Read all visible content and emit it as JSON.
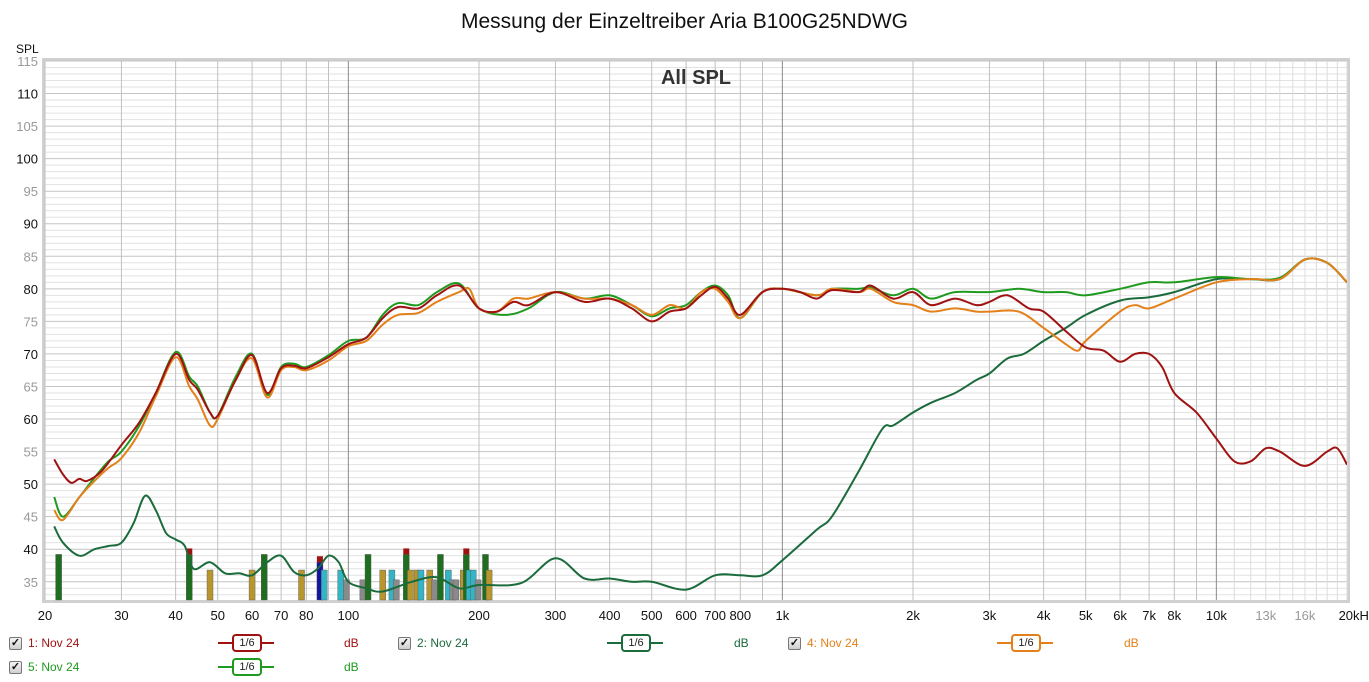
{
  "chart_data": {
    "type": "line",
    "title": "Messung der Einzeltreiber Aria B100G25NDWG",
    "overlay_label": "All SPL",
    "ylabel": "SPL",
    "xlabel": "Hz",
    "xscale": "log",
    "xlim": [
      20,
      20000
    ],
    "ylim": [
      32.2,
      115
    ],
    "grid": true,
    "y_ticks": [
      "115",
      "110",
      "105",
      "100",
      "95",
      "90",
      "85",
      "80",
      "75",
      "70",
      "65",
      "60",
      "55",
      "50",
      "45",
      "40",
      "35"
    ],
    "y_tick_values": [
      115,
      110,
      105,
      100,
      95,
      90,
      85,
      80,
      75,
      70,
      65,
      60,
      55,
      50,
      45,
      40,
      35
    ],
    "x_ticks": [
      {
        "v": 20,
        "t": "20"
      },
      {
        "v": 30,
        "t": "30"
      },
      {
        "v": 40,
        "t": "40"
      },
      {
        "v": 50,
        "t": "50"
      },
      {
        "v": 60,
        "t": "60"
      },
      {
        "v": 70,
        "t": "70"
      },
      {
        "v": 80,
        "t": "80"
      },
      {
        "v": 100,
        "t": "100"
      },
      {
        "v": 200,
        "t": "200"
      },
      {
        "v": 300,
        "t": "300"
      },
      {
        "v": 400,
        "t": "400"
      },
      {
        "v": 500,
        "t": "500"
      },
      {
        "v": 600,
        "t": "600"
      },
      {
        "v": 700,
        "t": "700"
      },
      {
        "v": 800,
        "t": "800"
      },
      {
        "v": 1000,
        "t": "1k"
      },
      {
        "v": 2000,
        "t": "2k"
      },
      {
        "v": 3000,
        "t": "3k"
      },
      {
        "v": 4000,
        "t": "4k"
      },
      {
        "v": 5000,
        "t": "5k"
      },
      {
        "v": 6000,
        "t": "6k"
      },
      {
        "v": 7000,
        "t": "7k"
      },
      {
        "v": 8000,
        "t": "8k"
      },
      {
        "v": 10000,
        "t": "10k"
      },
      {
        "v": 13000,
        "t": "13k"
      },
      {
        "v": 16000,
        "t": "16k"
      },
      {
        "v": 20000,
        "t": "20kHz"
      }
    ],
    "series": [
      {
        "name": "1: Nov 24",
        "color": "#a01212",
        "x": [
          21,
          22,
          23,
          24,
          25,
          27,
          30,
          33,
          36,
          40,
          43,
          45,
          48,
          50,
          55,
          60,
          65,
          70,
          75,
          80,
          90,
          100,
          110,
          120,
          130,
          145,
          160,
          180,
          200,
          220,
          240,
          260,
          300,
          350,
          400,
          450,
          500,
          550,
          600,
          650,
          700,
          750,
          800,
          900,
          1000,
          1100,
          1200,
          1300,
          1500,
          1600,
          1800,
          2000,
          2200,
          2500,
          2800,
          3000,
          3300,
          3700,
          4000,
          4500,
          5000,
          5500,
          6000,
          6500,
          7000,
          7500,
          8000,
          9000,
          10000,
          11000,
          12000,
          13000,
          14000,
          16000,
          18000,
          19000,
          20000
        ],
        "y": [
          53.8,
          51.5,
          50.2,
          50.8,
          50.5,
          52,
          56,
          59.5,
          64,
          70,
          66,
          64.5,
          61,
          60.5,
          66,
          69.8,
          64,
          67.8,
          68.2,
          67.8,
          69.5,
          71.5,
          72.5,
          75.5,
          77.2,
          77,
          79,
          80.5,
          77,
          76.5,
          78,
          77.5,
          79.5,
          78,
          78.5,
          77,
          75,
          76.5,
          77,
          79,
          80.3,
          78.5,
          76,
          79.5,
          80,
          79.5,
          78.5,
          79.8,
          79.5,
          80.5,
          78.5,
          79.5,
          77.5,
          78.5,
          77.5,
          78,
          79,
          77,
          76.5,
          73.5,
          71,
          70.5,
          68.8,
          70,
          70,
          68,
          64,
          61,
          57,
          53.5,
          53.5,
          55.5,
          55,
          52.8,
          55,
          55.5,
          53
        ]
      },
      {
        "name": "2: Nov 24",
        "color": "#1b6b3c",
        "x": [
          21,
          22,
          24,
          26,
          28,
          30,
          32,
          34,
          36,
          38,
          40,
          42,
          44,
          48,
          52,
          56,
          60,
          65,
          70,
          75,
          80,
          85,
          90,
          95,
          100,
          110,
          120,
          140,
          160,
          180,
          200,
          250,
          300,
          350,
          400,
          450,
          500,
          600,
          700,
          800,
          900,
          1000,
          1200,
          1300,
          1500,
          1700,
          1800,
          2000,
          2200,
          2500,
          2800,
          3000,
          3300,
          3600,
          4000,
          4500,
          5000,
          6000,
          7000,
          8000,
          10000,
          12000,
          14000,
          16000,
          18000,
          20000
        ],
        "y": [
          43.5,
          41,
          39,
          40,
          40.5,
          41,
          44,
          48.2,
          46,
          42.5,
          41.5,
          40.5,
          37,
          38,
          36.3,
          36.3,
          36,
          38,
          39,
          36.5,
          36,
          37,
          39,
          38,
          35,
          34,
          33.5,
          35,
          35.7,
          34,
          34.5,
          34.8,
          38.6,
          35.5,
          35.5,
          35,
          35,
          33.8,
          36,
          36,
          36,
          38.3,
          43,
          45,
          52,
          58.5,
          59,
          61,
          62.5,
          64,
          66,
          67,
          69.3,
          70,
          72,
          74,
          76,
          78.2,
          78.7,
          79.5,
          81.5,
          81.5,
          81.5,
          84.5,
          84,
          81
        ]
      },
      {
        "name": "4: Nov 24",
        "color": "#e3801a",
        "x": [
          21,
          22,
          24,
          26,
          28,
          30,
          33,
          36,
          40,
          43,
          45,
          48,
          50,
          55,
          60,
          65,
          70,
          75,
          80,
          90,
          100,
          110,
          120,
          130,
          145,
          160,
          180,
          190,
          200,
          220,
          240,
          260,
          300,
          350,
          400,
          450,
          500,
          550,
          600,
          650,
          700,
          750,
          800,
          900,
          1000,
          1200,
          1300,
          1500,
          1600,
          1800,
          2000,
          2200,
          2500,
          2800,
          3000,
          3500,
          4000,
          4500,
          4800,
          5000,
          6000,
          6500,
          7000,
          8000,
          10000,
          12000,
          14000,
          16000,
          18000,
          20000
        ],
        "y": [
          46,
          44.5,
          48,
          50.5,
          52.5,
          54,
          58,
          63.5,
          69.5,
          65,
          63,
          59,
          60,
          66,
          69.3,
          63.3,
          67.5,
          68,
          67.5,
          69,
          71.2,
          72,
          74.5,
          76,
          76.3,
          78,
          79.5,
          80,
          77,
          76.5,
          78.5,
          78.5,
          79.5,
          78.5,
          78.5,
          77.5,
          76,
          77.5,
          77,
          79.5,
          80,
          78,
          75.5,
          79.5,
          80,
          79,
          80,
          79.5,
          80,
          78,
          77.5,
          76.5,
          77,
          76.5,
          76.5,
          76.5,
          74,
          71.5,
          70.5,
          72,
          76.5,
          77.5,
          77,
          78.5,
          81,
          81.5,
          81.5,
          84.5,
          84,
          81
        ]
      },
      {
        "name": "5: Nov 24",
        "color": "#1f9a1f",
        "x": [
          21,
          22,
          24,
          26,
          28,
          30,
          33,
          36,
          40,
          43,
          45,
          48,
          50,
          55,
          60,
          65,
          70,
          75,
          80,
          90,
          100,
          110,
          120,
          130,
          145,
          160,
          180,
          200,
          230,
          260,
          300,
          350,
          400,
          450,
          500,
          550,
          600,
          650,
          700,
          750,
          800,
          900,
          1000,
          1200,
          1300,
          1500,
          1600,
          1800,
          2000,
          2200,
          2500,
          3000,
          3500,
          4000,
          4500,
          5000,
          6000,
          7000,
          8000,
          10000,
          12000,
          14000,
          16000,
          18000,
          20000
        ],
        "y": [
          48,
          45,
          48,
          51,
          53.5,
          55,
          59,
          64,
          70.3,
          66.5,
          65,
          61,
          60.5,
          66.5,
          70,
          63.7,
          68,
          68.5,
          68,
          69.8,
          72,
          72.5,
          76,
          77.8,
          77.5,
          79.5,
          80.8,
          77,
          76,
          77,
          79.5,
          78.5,
          79,
          77.5,
          75.8,
          77,
          77.5,
          79.5,
          80.5,
          79,
          75.5,
          79.5,
          80,
          79,
          80,
          80,
          80.2,
          79,
          80,
          78.5,
          79.5,
          79.5,
          80,
          79.5,
          79.5,
          79,
          80,
          81,
          81,
          81.8,
          81.5,
          81.7,
          84.5,
          84,
          81
        ]
      }
    ],
    "peak_markers": [
      {
        "f": 21.5,
        "top": 39.2,
        "c": "green"
      },
      {
        "f": 43,
        "top": 39.2,
        "c": "green",
        "cap": "red"
      },
      {
        "f": 48,
        "top": 36.8,
        "c": "gold"
      },
      {
        "f": 60,
        "top": 36.8,
        "c": "gold"
      },
      {
        "f": 64,
        "top": 39.2,
        "c": "green"
      },
      {
        "f": 78,
        "top": 36.8,
        "c": "gold"
      },
      {
        "f": 86,
        "top": 38,
        "c": "blue",
        "cap": "red"
      },
      {
        "f": 88,
        "top": 36.8,
        "c": "cyan"
      },
      {
        "f": 96,
        "top": 36.8,
        "c": "cyan"
      },
      {
        "f": 99,
        "top": 35.3,
        "c": "grey"
      },
      {
        "f": 108,
        "top": 35.3,
        "c": "grey"
      },
      {
        "f": 111,
        "top": 39.2,
        "c": "green"
      },
      {
        "f": 120,
        "top": 36.8,
        "c": "gold"
      },
      {
        "f": 126,
        "top": 36.8,
        "c": "cyan"
      },
      {
        "f": 129,
        "top": 35.3,
        "c": "grey"
      },
      {
        "f": 136,
        "top": 39.2,
        "c": "green",
        "cap": "red"
      },
      {
        "f": 139,
        "top": 36.8,
        "c": "gold"
      },
      {
        "f": 144,
        "top": 36.8,
        "c": "gold"
      },
      {
        "f": 147,
        "top": 36.8,
        "c": "cyan"
      },
      {
        "f": 154,
        "top": 36.8,
        "c": "gold"
      },
      {
        "f": 158,
        "top": 35.3,
        "c": "grey"
      },
      {
        "f": 163,
        "top": 39.2,
        "c": "green"
      },
      {
        "f": 170,
        "top": 36.8,
        "c": "cyan"
      },
      {
        "f": 174,
        "top": 35.3,
        "c": "grey"
      },
      {
        "f": 177,
        "top": 35.3,
        "c": "grey"
      },
      {
        "f": 184,
        "top": 36.8,
        "c": "gold"
      },
      {
        "f": 187,
        "top": 39.2,
        "c": "green",
        "cap": "red"
      },
      {
        "f": 190,
        "top": 36.8,
        "c": "cyan"
      },
      {
        "f": 194,
        "top": 36.8,
        "c": "cyan"
      },
      {
        "f": 199,
        "top": 35.3,
        "c": "grey"
      },
      {
        "f": 207,
        "top": 39.2,
        "c": "green"
      },
      {
        "f": 211,
        "top": 36.8,
        "c": "gold"
      }
    ],
    "marker_colors": {
      "green": "#1f6e1f",
      "gold": "#b8962e",
      "cyan": "#33b5c6",
      "grey": "#8a8a8a",
      "blue": "#1414a0",
      "red": "#a01212"
    }
  },
  "legend": [
    {
      "label": "1: Nov 24",
      "smoothing": "1/6",
      "unit": "dB",
      "color": "#a01212",
      "checked": "✓"
    },
    {
      "label": "2: Nov 24",
      "smoothing": "1/6",
      "unit": "dB",
      "color": "#1b6b3c",
      "checked": "✓"
    },
    {
      "label": "4: Nov 24",
      "smoothing": "1/6",
      "unit": "dB",
      "color": "#e3801a",
      "checked": "✓"
    },
    {
      "label": "5: Nov 24",
      "smoothing": "1/6",
      "unit": "dB",
      "color": "#1f9a1f",
      "checked": "✓"
    }
  ]
}
